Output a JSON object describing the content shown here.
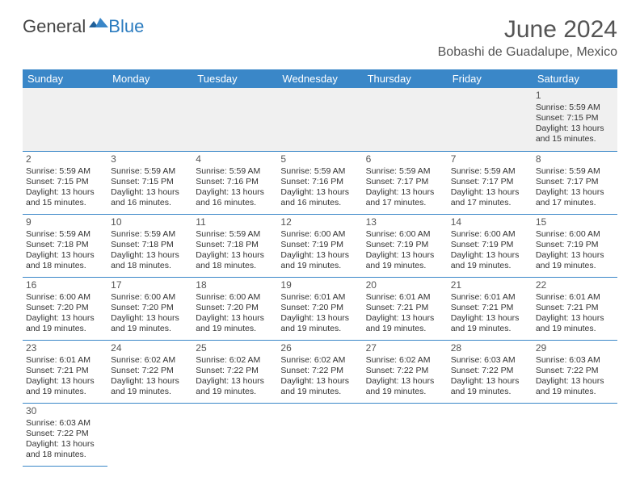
{
  "logo": {
    "text1": "General",
    "text2": "Blue",
    "color1": "#444444",
    "color2": "#2a7bbf"
  },
  "title": "June 2024",
  "location": "Bobashi de Guadalupe, Mexico",
  "header_bg": "#3a87c8",
  "header_fg": "#ffffff",
  "border_color": "#3a87c8",
  "empty_row_bg": "#f0f0f0",
  "weekdays": [
    "Sunday",
    "Monday",
    "Tuesday",
    "Wednesday",
    "Thursday",
    "Friday",
    "Saturday"
  ],
  "grid": [
    [
      null,
      null,
      null,
      null,
      null,
      null,
      {
        "d": "1",
        "sr": "5:59 AM",
        "ss": "7:15 PM",
        "dl": "13 hours and 15 minutes."
      }
    ],
    [
      {
        "d": "2",
        "sr": "5:59 AM",
        "ss": "7:15 PM",
        "dl": "13 hours and 15 minutes."
      },
      {
        "d": "3",
        "sr": "5:59 AM",
        "ss": "7:15 PM",
        "dl": "13 hours and 16 minutes."
      },
      {
        "d": "4",
        "sr": "5:59 AM",
        "ss": "7:16 PM",
        "dl": "13 hours and 16 minutes."
      },
      {
        "d": "5",
        "sr": "5:59 AM",
        "ss": "7:16 PM",
        "dl": "13 hours and 16 minutes."
      },
      {
        "d": "6",
        "sr": "5:59 AM",
        "ss": "7:17 PM",
        "dl": "13 hours and 17 minutes."
      },
      {
        "d": "7",
        "sr": "5:59 AM",
        "ss": "7:17 PM",
        "dl": "13 hours and 17 minutes."
      },
      {
        "d": "8",
        "sr": "5:59 AM",
        "ss": "7:17 PM",
        "dl": "13 hours and 17 minutes."
      }
    ],
    [
      {
        "d": "9",
        "sr": "5:59 AM",
        "ss": "7:18 PM",
        "dl": "13 hours and 18 minutes."
      },
      {
        "d": "10",
        "sr": "5:59 AM",
        "ss": "7:18 PM",
        "dl": "13 hours and 18 minutes."
      },
      {
        "d": "11",
        "sr": "5:59 AM",
        "ss": "7:18 PM",
        "dl": "13 hours and 18 minutes."
      },
      {
        "d": "12",
        "sr": "6:00 AM",
        "ss": "7:19 PM",
        "dl": "13 hours and 19 minutes."
      },
      {
        "d": "13",
        "sr": "6:00 AM",
        "ss": "7:19 PM",
        "dl": "13 hours and 19 minutes."
      },
      {
        "d": "14",
        "sr": "6:00 AM",
        "ss": "7:19 PM",
        "dl": "13 hours and 19 minutes."
      },
      {
        "d": "15",
        "sr": "6:00 AM",
        "ss": "7:19 PM",
        "dl": "13 hours and 19 minutes."
      }
    ],
    [
      {
        "d": "16",
        "sr": "6:00 AM",
        "ss": "7:20 PM",
        "dl": "13 hours and 19 minutes."
      },
      {
        "d": "17",
        "sr": "6:00 AM",
        "ss": "7:20 PM",
        "dl": "13 hours and 19 minutes."
      },
      {
        "d": "18",
        "sr": "6:00 AM",
        "ss": "7:20 PM",
        "dl": "13 hours and 19 minutes."
      },
      {
        "d": "19",
        "sr": "6:01 AM",
        "ss": "7:20 PM",
        "dl": "13 hours and 19 minutes."
      },
      {
        "d": "20",
        "sr": "6:01 AM",
        "ss": "7:21 PM",
        "dl": "13 hours and 19 minutes."
      },
      {
        "d": "21",
        "sr": "6:01 AM",
        "ss": "7:21 PM",
        "dl": "13 hours and 19 minutes."
      },
      {
        "d": "22",
        "sr": "6:01 AM",
        "ss": "7:21 PM",
        "dl": "13 hours and 19 minutes."
      }
    ],
    [
      {
        "d": "23",
        "sr": "6:01 AM",
        "ss": "7:21 PM",
        "dl": "13 hours and 19 minutes."
      },
      {
        "d": "24",
        "sr": "6:02 AM",
        "ss": "7:22 PM",
        "dl": "13 hours and 19 minutes."
      },
      {
        "d": "25",
        "sr": "6:02 AM",
        "ss": "7:22 PM",
        "dl": "13 hours and 19 minutes."
      },
      {
        "d": "26",
        "sr": "6:02 AM",
        "ss": "7:22 PM",
        "dl": "13 hours and 19 minutes."
      },
      {
        "d": "27",
        "sr": "6:02 AM",
        "ss": "7:22 PM",
        "dl": "13 hours and 19 minutes."
      },
      {
        "d": "28",
        "sr": "6:03 AM",
        "ss": "7:22 PM",
        "dl": "13 hours and 19 minutes."
      },
      {
        "d": "29",
        "sr": "6:03 AM",
        "ss": "7:22 PM",
        "dl": "13 hours and 19 minutes."
      }
    ],
    [
      {
        "d": "30",
        "sr": "6:03 AM",
        "ss": "7:22 PM",
        "dl": "13 hours and 18 minutes."
      },
      null,
      null,
      null,
      null,
      null,
      null
    ]
  ],
  "labels": {
    "sunrise": "Sunrise:",
    "sunset": "Sunset:",
    "daylight": "Daylight:"
  }
}
